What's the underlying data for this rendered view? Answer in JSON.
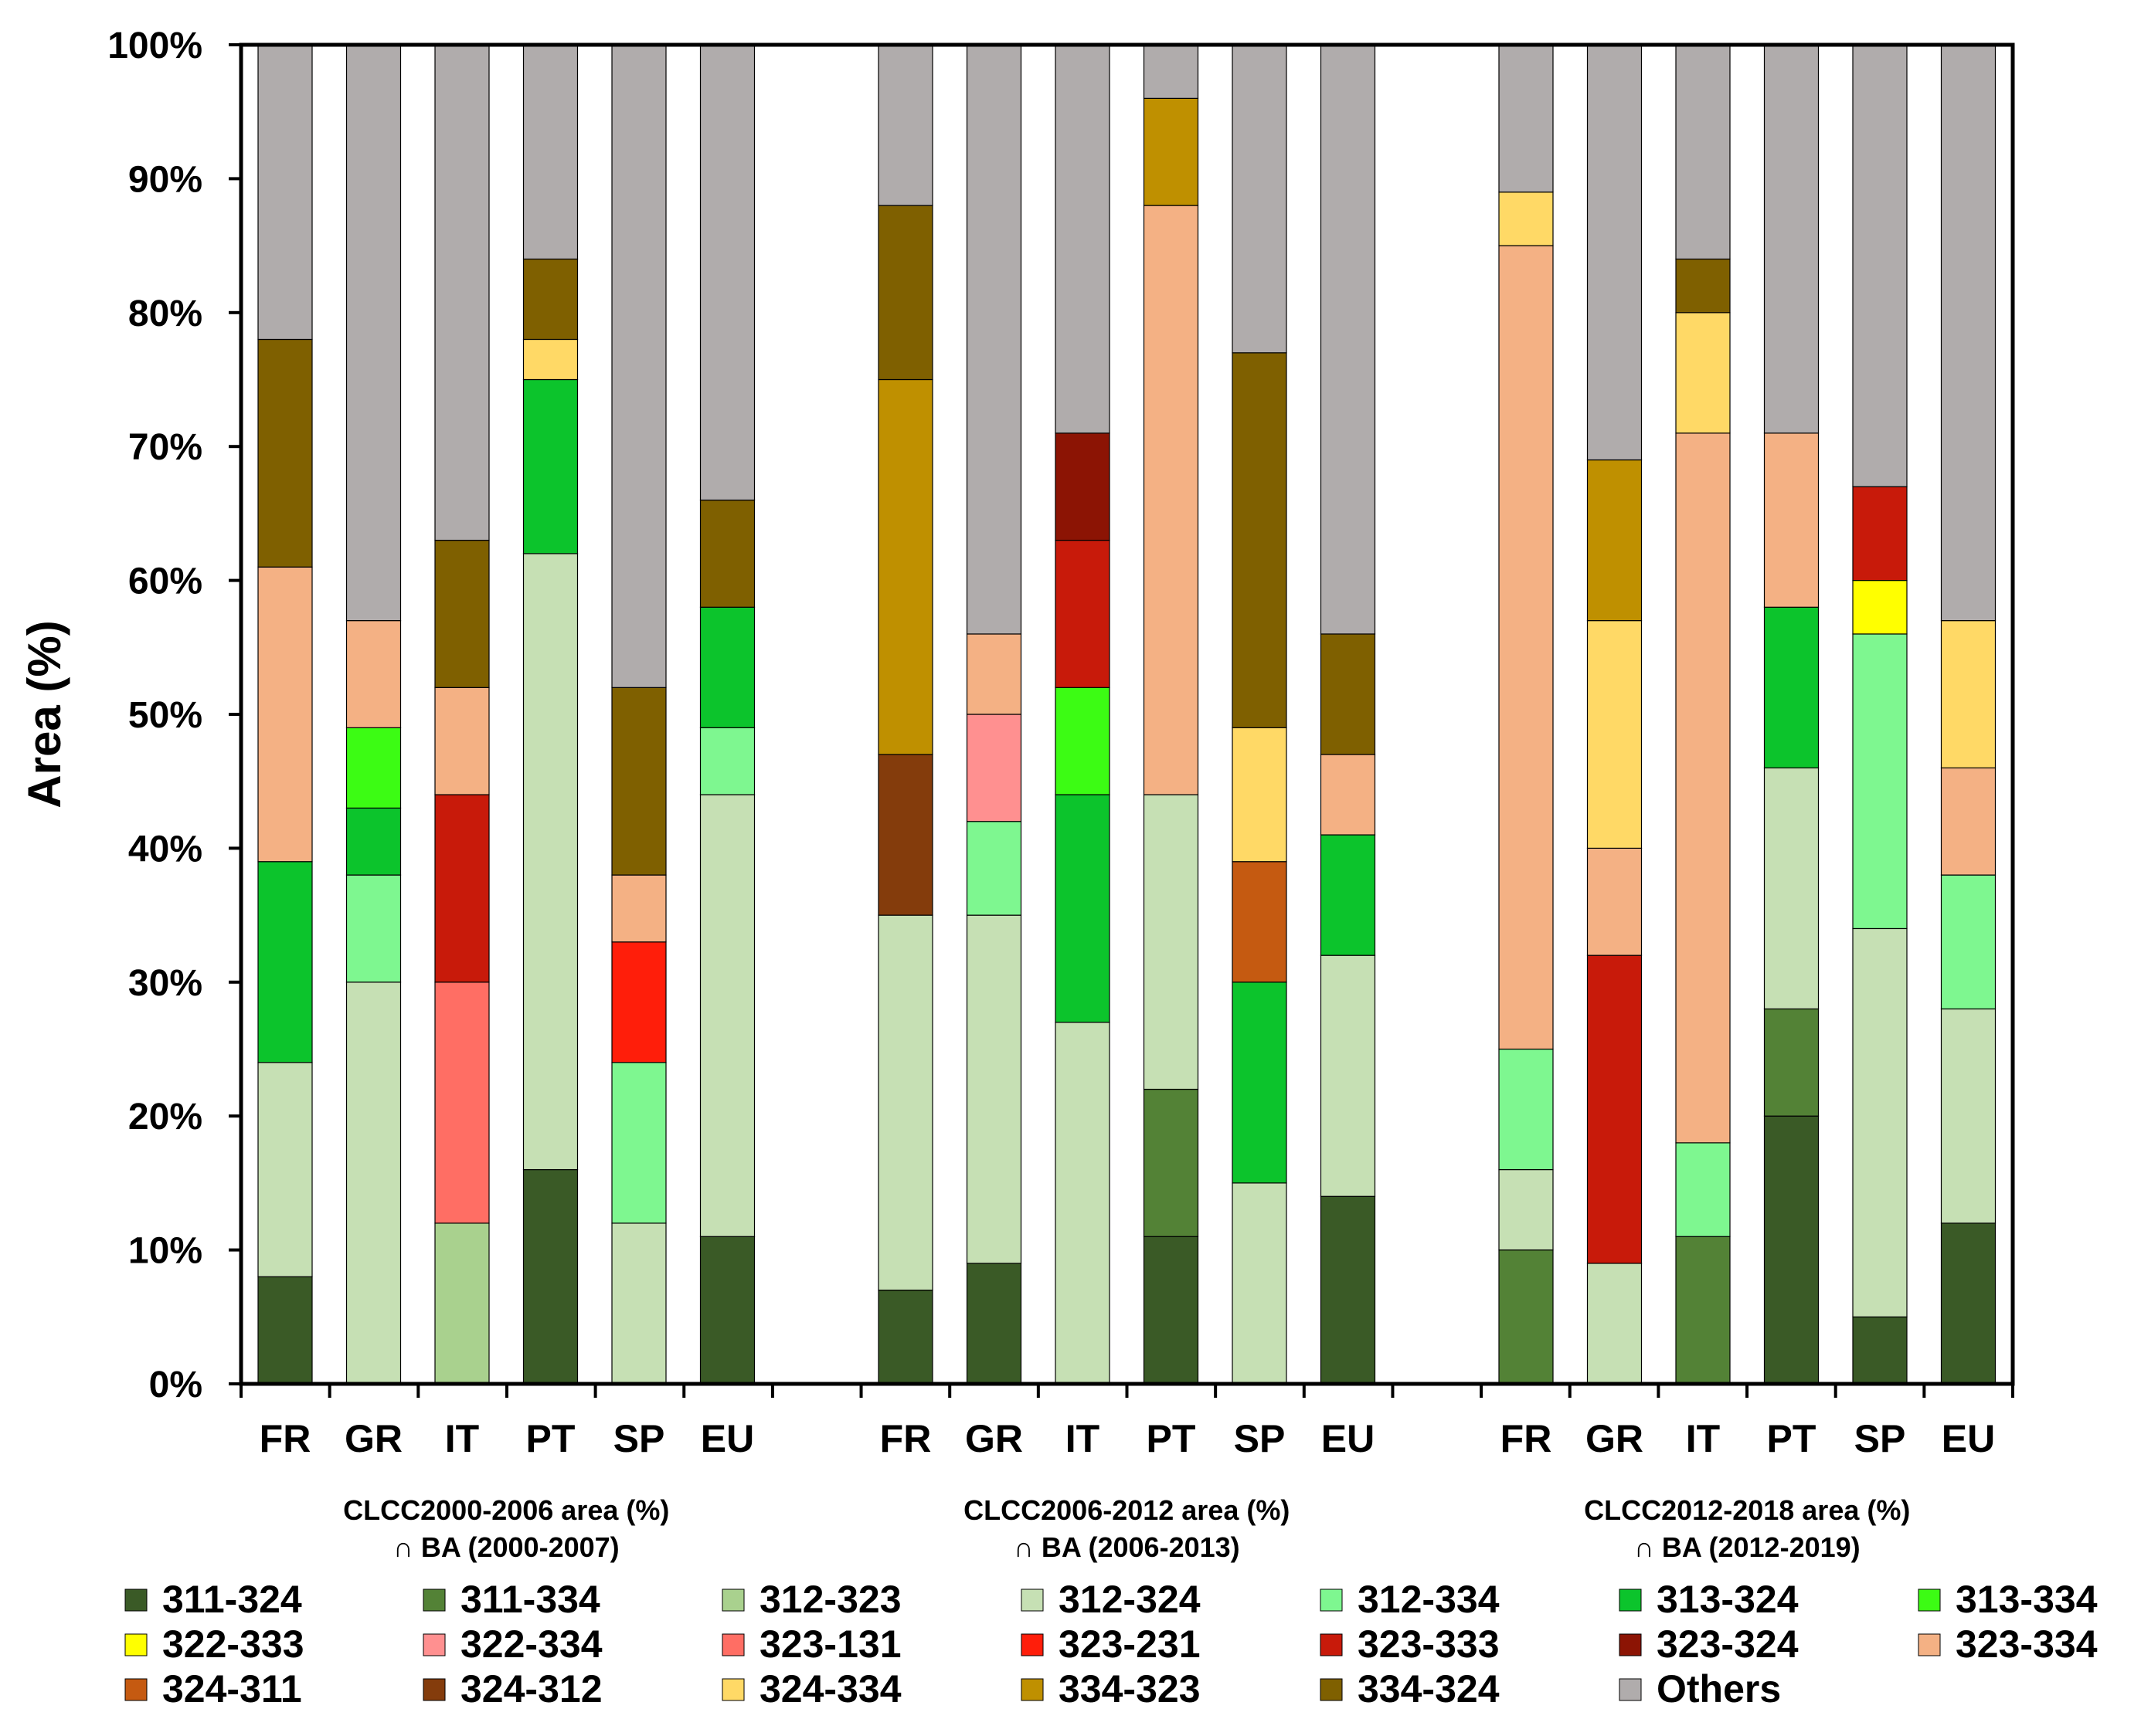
{
  "chart_data": {
    "type": "bar",
    "stacked": true,
    "ylabel": "Area (%)",
    "ylim": [
      0,
      100
    ],
    "yticks": [
      "0%",
      "10%",
      "20%",
      "30%",
      "40%",
      "50%",
      "60%",
      "70%",
      "80%",
      "90%",
      "100%"
    ],
    "legend_position": "bottom",
    "groups": [
      {
        "caption_line1": "CLCC2000-2006 area (%)",
        "caption_line2": "∩ BA (2000-2007)",
        "bars": [
          {
            "label": "FR",
            "segments": [
              [
                "311-324",
                8
              ],
              [
                "312-324",
                16
              ],
              [
                "313-324",
                15
              ],
              [
                "323-334",
                22
              ],
              [
                "334-324",
                17
              ],
              [
                "Others",
                22
              ]
            ]
          },
          {
            "label": "GR",
            "segments": [
              [
                "312-324",
                30
              ],
              [
                "312-334",
                8
              ],
              [
                "313-324",
                5
              ],
              [
                "313-334",
                6
              ],
              [
                "323-334",
                8
              ],
              [
                "Others",
                43
              ]
            ]
          },
          {
            "label": "IT",
            "segments": [
              [
                "312-323",
                12
              ],
              [
                "323-131",
                18
              ],
              [
                "323-333",
                14
              ],
              [
                "323-334",
                8
              ],
              [
                "334-324",
                11
              ],
              [
                "Others",
                37
              ]
            ]
          },
          {
            "label": "PT",
            "segments": [
              [
                "311-324",
                16
              ],
              [
                "312-324",
                46
              ],
              [
                "313-324",
                13
              ],
              [
                "324-334",
                3
              ],
              [
                "334-324",
                6
              ],
              [
                "Others",
                16
              ]
            ]
          },
          {
            "label": "SP",
            "segments": [
              [
                "312-324",
                12
              ],
              [
                "312-334",
                12
              ],
              [
                "323-231",
                9
              ],
              [
                "323-334",
                5
              ],
              [
                "334-324",
                14
              ],
              [
                "Others",
                48
              ]
            ]
          },
          {
            "label": "EU",
            "segments": [
              [
                "311-324",
                11
              ],
              [
                "312-324",
                33
              ],
              [
                "312-334",
                5
              ],
              [
                "313-324",
                9
              ],
              [
                "334-324",
                8
              ],
              [
                "Others",
                34
              ]
            ]
          }
        ]
      },
      {
        "caption_line1": "CLCC2006-2012 area (%)",
        "caption_line2": "∩ BA (2006-2013)",
        "bars": [
          {
            "label": "FR",
            "segments": [
              [
                "311-324",
                7
              ],
              [
                "312-324",
                28
              ],
              [
                "324-312",
                12
              ],
              [
                "334-323",
                28
              ],
              [
                "334-324",
                13
              ],
              [
                "Others",
                12
              ]
            ]
          },
          {
            "label": "GR",
            "segments": [
              [
                "311-324",
                9
              ],
              [
                "312-324",
                26
              ],
              [
                "312-334",
                7
              ],
              [
                "322-334",
                8
              ],
              [
                "323-334",
                6
              ],
              [
                "Others",
                44
              ]
            ]
          },
          {
            "label": "IT",
            "segments": [
              [
                "312-324",
                27
              ],
              [
                "313-324",
                17
              ],
              [
                "313-334",
                8
              ],
              [
                "323-333",
                11
              ],
              [
                "323-324",
                8
              ],
              [
                "Others",
                29
              ]
            ]
          },
          {
            "label": "PT",
            "segments": [
              [
                "311-324",
                11
              ],
              [
                "311-334",
                11
              ],
              [
                "312-324",
                22
              ],
              [
                "323-334",
                44
              ],
              [
                "334-323",
                8
              ],
              [
                "Others",
                4
              ]
            ]
          },
          {
            "label": "SP",
            "segments": [
              [
                "312-324",
                15
              ],
              [
                "313-324",
                15
              ],
              [
                "324-311",
                9
              ],
              [
                "324-334",
                10
              ],
              [
                "334-324",
                28
              ],
              [
                "Others",
                23
              ]
            ]
          },
          {
            "label": "EU",
            "segments": [
              [
                "311-324",
                14
              ],
              [
                "312-324",
                18
              ],
              [
                "313-324",
                9
              ],
              [
                "323-334",
                6
              ],
              [
                "334-324",
                9
              ],
              [
                "Others",
                44
              ]
            ]
          }
        ]
      },
      {
        "caption_line1": "CLCC2012-2018 area (%)",
        "caption_line2": "∩ BA (2012-2019)",
        "bars": [
          {
            "label": "FR",
            "segments": [
              [
                "311-334",
                10
              ],
              [
                "312-324",
                6
              ],
              [
                "312-334",
                9
              ],
              [
                "323-334",
                60
              ],
              [
                "324-334",
                4
              ],
              [
                "Others",
                11
              ]
            ]
          },
          {
            "label": "GR",
            "segments": [
              [
                "312-324",
                9
              ],
              [
                "323-333",
                23
              ],
              [
                "323-334",
                8
              ],
              [
                "324-334",
                17
              ],
              [
                "334-323",
                12
              ],
              [
                "Others",
                31
              ]
            ]
          },
          {
            "label": "IT",
            "segments": [
              [
                "311-334",
                11
              ],
              [
                "312-334",
                7
              ],
              [
                "323-334",
                53
              ],
              [
                "324-334",
                9
              ],
              [
                "334-324",
                4
              ],
              [
                "Others",
                16
              ]
            ]
          },
          {
            "label": "PT",
            "segments": [
              [
                "311-324",
                20
              ],
              [
                "311-334",
                8
              ],
              [
                "312-324",
                18
              ],
              [
                "313-324",
                12
              ],
              [
                "323-334",
                13
              ],
              [
                "Others",
                29
              ]
            ]
          },
          {
            "label": "SP",
            "segments": [
              [
                "311-324",
                5
              ],
              [
                "312-324",
                29
              ],
              [
                "312-334",
                22
              ],
              [
                "322-333",
                4
              ],
              [
                "323-333",
                7
              ],
              [
                "Others",
                33
              ]
            ]
          },
          {
            "label": "EU",
            "segments": [
              [
                "311-324",
                12
              ],
              [
                "312-324",
                16
              ],
              [
                "312-334",
                10
              ],
              [
                "323-334",
                8
              ],
              [
                "324-334",
                11
              ],
              [
                "Others",
                43
              ]
            ]
          }
        ]
      }
    ],
    "legend": [
      {
        "key": "311-324",
        "color": "#3a5a26"
      },
      {
        "key": "311-334",
        "color": "#538236"
      },
      {
        "key": "312-323",
        "color": "#a9d18e"
      },
      {
        "key": "312-324",
        "color": "#c6e0b4"
      },
      {
        "key": "312-334",
        "color": "#7ef790"
      },
      {
        "key": "313-324",
        "color": "#0cc42c"
      },
      {
        "key": "313-334",
        "color": "#3cfc14"
      },
      {
        "key": "322-333",
        "color": "#ffff00"
      },
      {
        "key": "322-334",
        "color": "#ff9090"
      },
      {
        "key": "323-131",
        "color": "#ff6e64"
      },
      {
        "key": "323-231",
        "color": "#ff1e0a"
      },
      {
        "key": "323-333",
        "color": "#c81a0a"
      },
      {
        "key": "323-324",
        "color": "#8c1404"
      },
      {
        "key": "323-334",
        "color": "#f4b184"
      },
      {
        "key": "324-311",
        "color": "#c55a11"
      },
      {
        "key": "324-312",
        "color": "#843c0c"
      },
      {
        "key": "324-334",
        "color": "#ffd966"
      },
      {
        "key": "334-323",
        "color": "#bf9000"
      },
      {
        "key": "334-324",
        "color": "#7f6000"
      },
      {
        "key": "Others",
        "color": "#b0acac"
      }
    ]
  }
}
